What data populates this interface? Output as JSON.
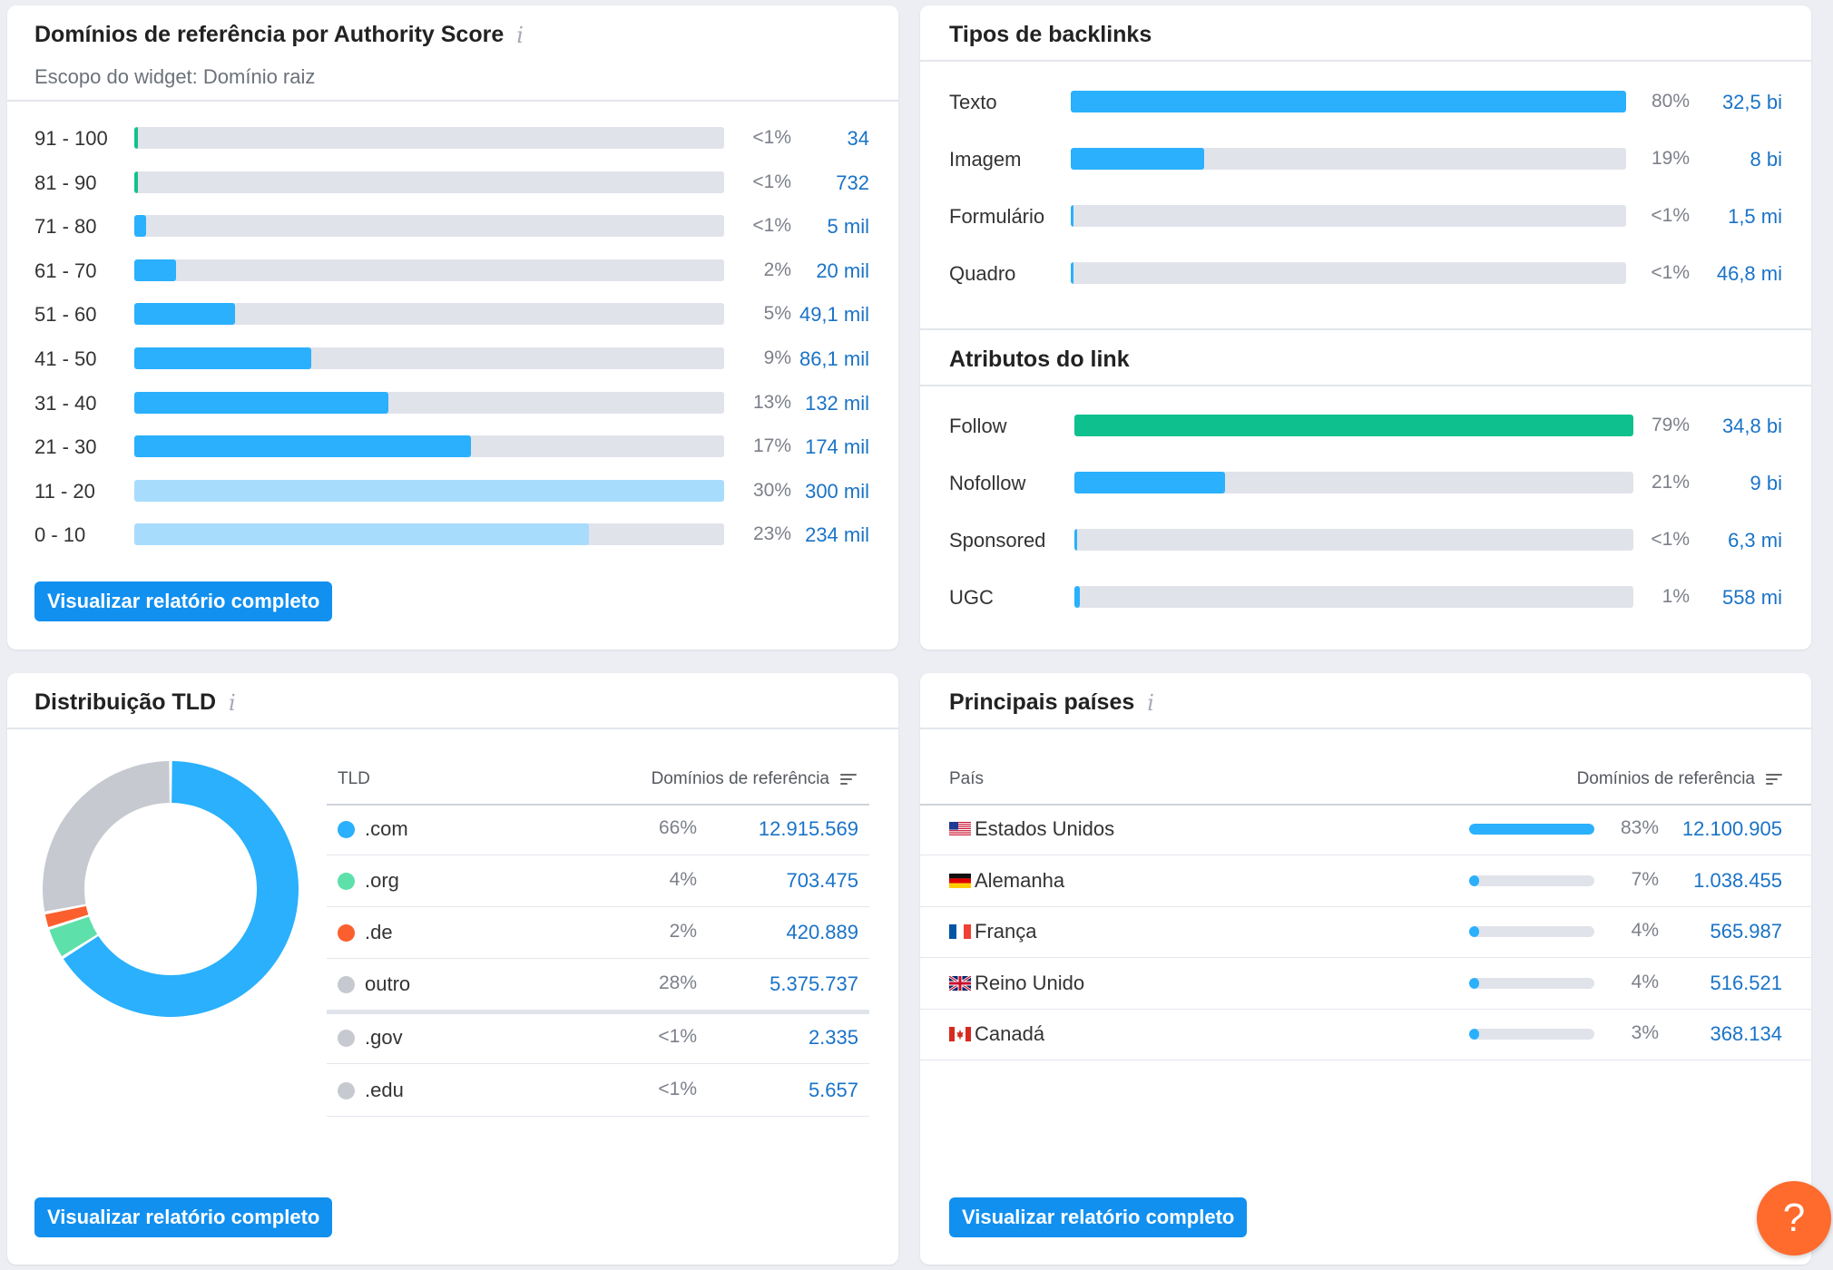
{
  "authority": {
    "title": "Domínios de referência por Authority Score",
    "scope": "Escopo do widget: Domínio raiz",
    "button": "Visualizar relatório completo",
    "rows": [
      {
        "label": "91 - 100",
        "pct": "<1%",
        "value": "34",
        "share": 0.006,
        "color": "#13c08d"
      },
      {
        "label": "81 - 90",
        "pct": "<1%",
        "value": "732",
        "share": 0.006,
        "color": "#13c08d"
      },
      {
        "label": "71 - 80",
        "pct": "<1%",
        "value": "5 mil",
        "share": 0.02,
        "color": "#2ab0fc"
      },
      {
        "label": "61 - 70",
        "pct": "2%",
        "value": "20 mil",
        "share": 0.07,
        "color": "#2ab0fc"
      },
      {
        "label": "51 - 60",
        "pct": "5%",
        "value": "49,1 mil",
        "share": 0.17,
        "color": "#2ab0fc"
      },
      {
        "label": "41 - 50",
        "pct": "9%",
        "value": "86,1 mil",
        "share": 0.3,
        "color": "#2ab0fc"
      },
      {
        "label": "31 - 40",
        "pct": "13%",
        "value": "132 mil",
        "share": 0.43,
        "color": "#2ab0fc"
      },
      {
        "label": "21 - 30",
        "pct": "17%",
        "value": "174 mil",
        "share": 0.57,
        "color": "#2ab0fc"
      },
      {
        "label": "11 - 20",
        "pct": "30%",
        "value": "300 mil",
        "share": 1.0,
        "color": "#a8dcfd"
      },
      {
        "label": "0 - 10",
        "pct": "23%",
        "value": "234 mil",
        "share": 0.77,
        "color": "#a8dcfd"
      }
    ]
  },
  "backlinks": {
    "title": "Tipos de backlinks",
    "rows": [
      {
        "label": "Texto",
        "pct": "80%",
        "value": "32,5 bi",
        "share": 1.0,
        "color": "#2ab0fc"
      },
      {
        "label": "Imagem",
        "pct": "19%",
        "value": "8 bi",
        "share": 0.24,
        "color": "#2ab0fc"
      },
      {
        "label": "Formulário",
        "pct": "<1%",
        "value": "1,5 mi",
        "share": 0.005,
        "color": "#2ab0fc"
      },
      {
        "label": "Quadro",
        "pct": "<1%",
        "value": "46,8 mi",
        "share": 0.005,
        "color": "#2ab0fc"
      }
    ],
    "attributes_title": "Atributos do link",
    "attributes": [
      {
        "label": "Follow",
        "pct": "79%",
        "value": "34,8 bi",
        "share": 1.0,
        "color": "#0fc08f"
      },
      {
        "label": "Nofollow",
        "pct": "21%",
        "value": "9 bi",
        "share": 0.27,
        "color": "#2ab0fc"
      },
      {
        "label": "Sponsored",
        "pct": "<1%",
        "value": "6,3 mi",
        "share": 0.005,
        "color": "#2ab0fc"
      },
      {
        "label": "UGC",
        "pct": "1%",
        "value": "558 mi",
        "share": 0.01,
        "color": "#2ab0fc"
      }
    ]
  },
  "tld": {
    "title": "Distribuição TLD",
    "col_tld": "TLD",
    "col_domains": "Domínios de referência",
    "button": "Visualizar relatório completo",
    "rows": [
      {
        "label": ".com",
        "pct": "66%",
        "value": "12.915.569",
        "color": "#2ab0fc"
      },
      {
        "label": ".org",
        "pct": "4%",
        "value": "703.475",
        "color": "#5ee0ab"
      },
      {
        "label": ".de",
        "pct": "2%",
        "value": "420.889",
        "color": "#fb5f2d"
      },
      {
        "label": "outro",
        "pct": "28%",
        "value": "5.375.737",
        "color": "#c6c9d0"
      },
      {
        "label": ".gov",
        "pct": "<1%",
        "value": "2.335",
        "color": "#c6c9d0"
      },
      {
        "label": ".edu",
        "pct": "<1%",
        "value": "5.657",
        "color": "#c6c9d0"
      }
    ],
    "donut": [
      {
        "name": ".com",
        "share": 0.66,
        "color": "#2ab0fc"
      },
      {
        "name": ".org",
        "share": 0.04,
        "color": "#5ee0ab"
      },
      {
        "name": ".de",
        "share": 0.02,
        "color": "#fb5f2d"
      },
      {
        "name": "outro",
        "share": 0.28,
        "color": "#c6c9d0"
      }
    ]
  },
  "countries": {
    "title": "Principais países",
    "col_country": "País",
    "col_domains": "Domínios de referência",
    "button": "Visualizar relatório completo",
    "rows": [
      {
        "name": "Estados Unidos",
        "flag": "us-flag",
        "pct": "83%",
        "value": "12.100.905",
        "share": 0.83
      },
      {
        "name": "Alemanha",
        "flag": "de-flag",
        "pct": "7%",
        "value": "1.038.455",
        "share": 0.07
      },
      {
        "name": "França",
        "flag": "fr-flag",
        "pct": "4%",
        "value": "565.987",
        "share": 0.04
      },
      {
        "name": "Reino Unido",
        "flag": "uk-flag",
        "pct": "4%",
        "value": "516.521",
        "share": 0.04
      },
      {
        "name": "Canadá",
        "flag": "ca-flag",
        "pct": "3%",
        "value": "368.134",
        "share": 0.03
      }
    ]
  },
  "help": {
    "label": "?"
  },
  "icons": {
    "info": "i"
  }
}
